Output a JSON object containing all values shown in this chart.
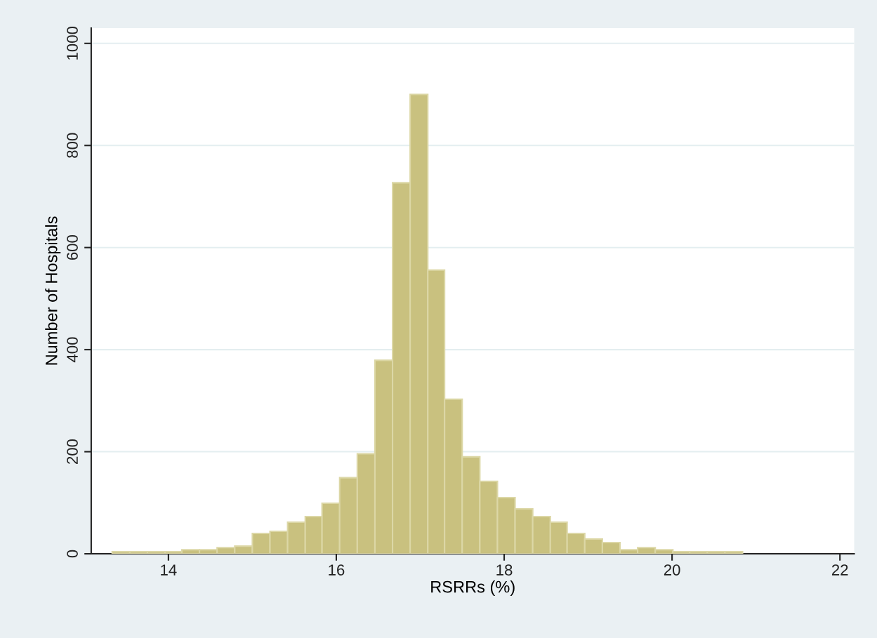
{
  "chart_data": {
    "type": "histogram",
    "xlabel": "RSRRs (%)",
    "ylabel": "Number of Hospitals",
    "bins": [
      13.33,
      13.54,
      13.75,
      13.96,
      14.16,
      14.37,
      14.58,
      14.79,
      15.0,
      15.21,
      15.42,
      15.63,
      15.83,
      16.04,
      16.25,
      16.46,
      16.67,
      16.88,
      17.09,
      17.29,
      17.5,
      17.71,
      17.92,
      18.13,
      18.34,
      18.55,
      18.75,
      18.96,
      19.17,
      19.38,
      19.59,
      19.8,
      20.01,
      20.21,
      20.42,
      20.63,
      20.84
    ],
    "values": [
      4,
      4,
      4,
      4,
      8,
      8,
      12,
      15,
      40,
      44,
      62,
      73,
      99,
      149,
      196,
      379,
      727,
      900,
      556,
      303,
      190,
      142,
      110,
      88,
      73,
      62,
      40,
      29,
      22,
      8,
      12,
      8,
      4,
      4,
      4,
      4
    ],
    "color": "#c9c17f",
    "xlim": [
      13.08,
      22.17
    ],
    "ylim": [
      0,
      1030
    ],
    "xticks": [
      14,
      16,
      18,
      20,
      22
    ],
    "yticks": [
      0,
      200,
      400,
      600,
      800,
      1000
    ],
    "grid": "y"
  }
}
